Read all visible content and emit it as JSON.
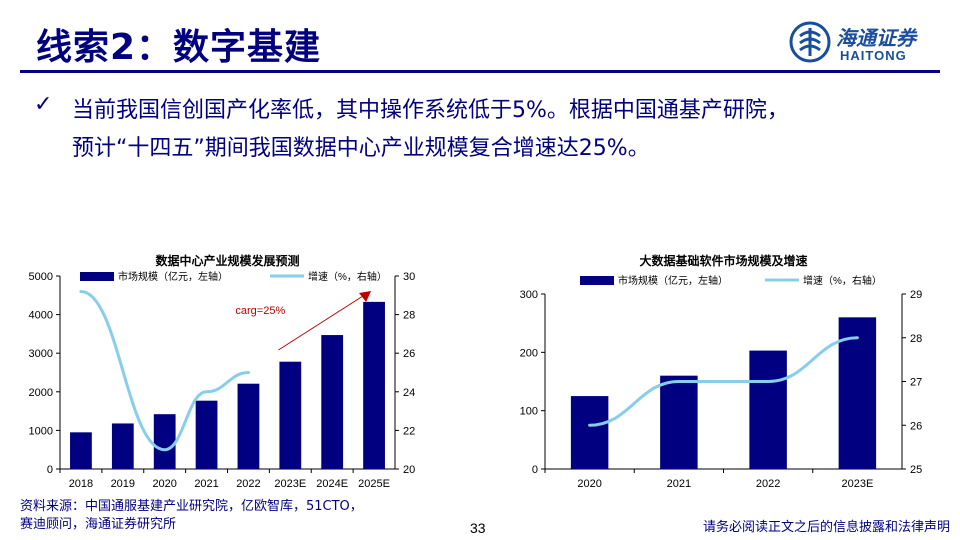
{
  "header": {
    "title": "线索2：数字基建",
    "logo_cn": "海通证券",
    "logo_en": "HAITONG"
  },
  "bullet": {
    "line1": "当前我国信创国产化率低，其中操作系统低于5%。根据中国通基产研院，",
    "line2": "预计“十四五”期间我国数据中心产业规模复合增速达25%。"
  },
  "colors": {
    "bar": "#000080",
    "line": "#87CEEB",
    "arrow": "#C00000",
    "heading": "#000080"
  },
  "chart_data": [
    {
      "type": "bar",
      "title": "数据中心产业规模发展预测",
      "categories": [
        "2018",
        "2019",
        "2020",
        "2021",
        "2022",
        "2023E",
        "2024E",
        "2025E"
      ],
      "series": [
        {
          "name": "市场规模（亿元，左轴）",
          "axis": "left",
          "kind": "bar",
          "values": [
            950,
            1180,
            1420,
            1770,
            2210,
            2780,
            3470,
            4330
          ]
        },
        {
          "name": "增速（%，右轴）",
          "axis": "right",
          "kind": "line",
          "values": [
            29.2,
            null,
            21.0,
            24.0,
            25.0,
            null,
            null,
            null
          ]
        }
      ],
      "ylim_left": [
        0,
        5000
      ],
      "yticks_left": [
        0,
        1000,
        2000,
        3000,
        4000,
        5000
      ],
      "ylim_right": [
        20,
        30
      ],
      "yticks_right": [
        20,
        22,
        24,
        26,
        28,
        30
      ],
      "annotation": "carg=25%"
    },
    {
      "type": "bar",
      "title": "大数据基础软件市场规模及增速",
      "categories": [
        "2020",
        "2021",
        "2022",
        "2023E"
      ],
      "series": [
        {
          "name": "市场规模（亿元，左轴）",
          "axis": "left",
          "kind": "bar",
          "values": [
            125,
            160,
            203,
            260
          ]
        },
        {
          "name": "增速（%，右轴）",
          "axis": "right",
          "kind": "line",
          "values": [
            26,
            27,
            27,
            28
          ]
        }
      ],
      "ylim_left": [
        0,
        300
      ],
      "yticks_left": [
        0,
        100,
        200,
        300
      ],
      "ylim_right": [
        25,
        29
      ],
      "yticks_right": [
        25,
        26,
        27,
        28,
        29
      ]
    }
  ],
  "footer": {
    "source_line1": "资料来源：中国通服基建产业研究院，亿欧智库，51CTO，",
    "source_line2": "赛迪顾问，海通证券研究所",
    "page_number": "33",
    "disclaimer": "请务必阅读正文之后的信息披露和法律声明"
  }
}
